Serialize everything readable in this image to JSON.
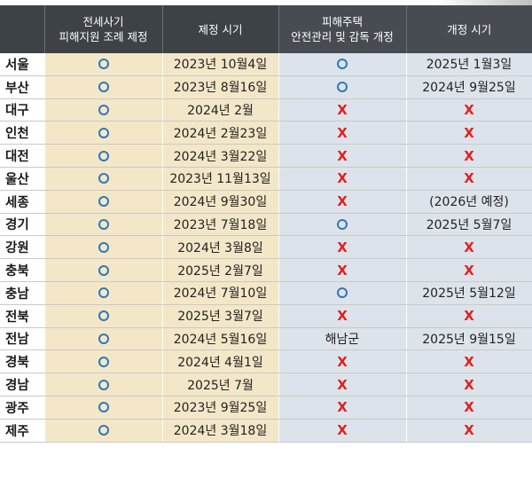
{
  "headers": {
    "ordinance_line1": "전세사기",
    "ordinance_line2": "피해지원 조례 제정",
    "enact_date": "제정 시기",
    "revision_line1": "피해주택",
    "revision_line2": "안전관리 및 감독 개정",
    "revise_date": "개정 시기"
  },
  "marks": {
    "yes": "circle-mark",
    "no": "X"
  },
  "rows": [
    {
      "region": "서울",
      "ordinance": "yes",
      "enact_date": "2023년 10월4일",
      "revision": "yes",
      "revise_date": "2025년 1월3일"
    },
    {
      "region": "부산",
      "ordinance": "yes",
      "enact_date": "2023년 8월16일",
      "revision": "yes",
      "revise_date": "2024년 9월25일"
    },
    {
      "region": "대구",
      "ordinance": "yes",
      "enact_date": "2024년 2월",
      "revision": "no",
      "revise_date": "X"
    },
    {
      "region": "인천",
      "ordinance": "yes",
      "enact_date": "2024년 2월23일",
      "revision": "no",
      "revise_date": "X"
    },
    {
      "region": "대전",
      "ordinance": "yes",
      "enact_date": "2024년 3월22일",
      "revision": "no",
      "revise_date": "X"
    },
    {
      "region": "울산",
      "ordinance": "yes",
      "enact_date": "2023년 11월13일",
      "revision": "no",
      "revise_date": "X"
    },
    {
      "region": "세종",
      "ordinance": "yes",
      "enact_date": "2024년 9월30일",
      "revision": "no",
      "revise_date": "(2026년 예정)"
    },
    {
      "region": "경기",
      "ordinance": "yes",
      "enact_date": "2023년 7월18일",
      "revision": "yes",
      "revise_date": "2025년 5월7일"
    },
    {
      "region": "강원",
      "ordinance": "yes",
      "enact_date": "2024년 3월8일",
      "revision": "no",
      "revise_date": "X"
    },
    {
      "region": "충북",
      "ordinance": "yes",
      "enact_date": "2025년 2월7일",
      "revision": "no",
      "revise_date": "X"
    },
    {
      "region": "충남",
      "ordinance": "yes",
      "enact_date": "2024년 7월10일",
      "revision": "yes",
      "revise_date": "2025년 5월12일"
    },
    {
      "region": "전북",
      "ordinance": "yes",
      "enact_date": "2025년 3월7일",
      "revision": "no",
      "revise_date": "X"
    },
    {
      "region": "전남",
      "ordinance": "yes",
      "enact_date": "2024년 5월16일",
      "revision": "해남군",
      "revise_date": "2025년 9월15일"
    },
    {
      "region": "경북",
      "ordinance": "yes",
      "enact_date": "2024년 4월1일",
      "revision": "no",
      "revise_date": "X"
    },
    {
      "region": "경남",
      "ordinance": "yes",
      "enact_date": "2025년 7월",
      "revision": "no",
      "revise_date": "X"
    },
    {
      "region": "광주",
      "ordinance": "yes",
      "enact_date": "2023년 9월25일",
      "revision": "no",
      "revise_date": "X"
    },
    {
      "region": "제주",
      "ordinance": "yes",
      "enact_date": "2024년 3월18일",
      "revision": "no",
      "revise_date": "X"
    }
  ],
  "colors": {
    "header_bg": "#3d4247",
    "group_a_bg": "#f3e7c8",
    "group_b_bg": "#dde3ea",
    "circle": "#2f78b8",
    "x": "#e02020"
  }
}
